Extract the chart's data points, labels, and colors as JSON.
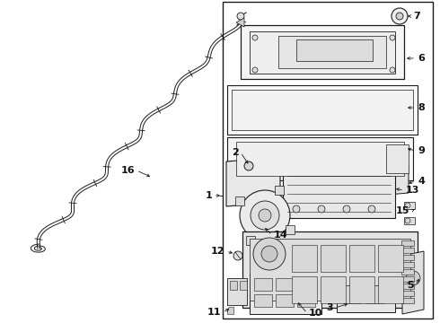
{
  "bg_color": "#ffffff",
  "line_color": "#1a1a1a",
  "label_color": "#111111",
  "fig_width": 4.9,
  "fig_height": 3.6,
  "dpi": 100
}
